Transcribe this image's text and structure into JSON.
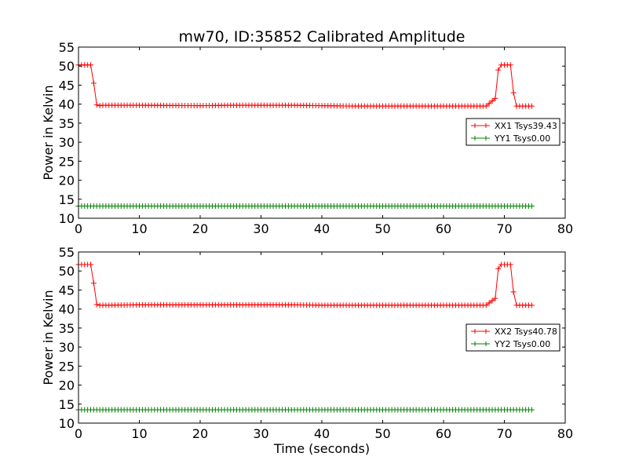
{
  "figure_title": "mw70, ID:35852 Calibrated Amplitude",
  "chart_data": [
    {
      "type": "line",
      "title": "mw70, ID:35852 Calibrated Amplitude",
      "xlabel": "",
      "ylabel": "Power in Kelvin",
      "xlim": [
        0,
        80
      ],
      "ylim": [
        10,
        55
      ],
      "xticks": [
        "0",
        "10",
        "20",
        "30",
        "40",
        "50",
        "60",
        "70",
        "80"
      ],
      "yticks": [
        "10",
        "15",
        "20",
        "25",
        "30",
        "35",
        "40",
        "45",
        "50",
        "55"
      ],
      "grid": false,
      "legend_position": "right",
      "marker": "+",
      "series": [
        {
          "name": "XX1 Tsys39.43",
          "color": "#ff0000",
          "x": [
            0,
            0.5,
            1,
            1.5,
            2,
            2.5,
            3,
            3.5,
            4,
            5,
            10,
            20,
            25,
            30,
            35,
            40,
            45,
            50,
            55,
            60,
            65,
            67,
            68.5,
            69,
            69.5,
            70,
            70.5,
            71,
            71.5,
            72,
            73,
            74,
            74.5
          ],
          "y": [
            50.3,
            50.3,
            50.3,
            50.3,
            50.3,
            45.5,
            39.8,
            39.6,
            39.7,
            39.7,
            39.7,
            39.6,
            39.7,
            39.7,
            39.7,
            39.6,
            39.5,
            39.5,
            39.5,
            39.5,
            39.5,
            39.5,
            41.5,
            49.0,
            50.3,
            50.3,
            50.3,
            50.3,
            43.0,
            39.5,
            39.5,
            39.5,
            39.5
          ]
        },
        {
          "name": "YY1 Tsys0.00",
          "color": "#008000",
          "x": [
            0,
            74.5
          ],
          "y": [
            13.2,
            13.2
          ]
        }
      ]
    },
    {
      "type": "line",
      "title": "",
      "xlabel": "Time (seconds)",
      "ylabel": "Power in Kelvin",
      "xlim": [
        0,
        80
      ],
      "ylim": [
        10,
        55
      ],
      "xticks": [
        "0",
        "10",
        "20",
        "30",
        "40",
        "50",
        "60",
        "70",
        "80"
      ],
      "yticks": [
        "10",
        "15",
        "20",
        "25",
        "30",
        "35",
        "40",
        "45",
        "50",
        "55"
      ],
      "grid": false,
      "legend_position": "right",
      "marker": "+",
      "series": [
        {
          "name": "XX2 Tsys40.78",
          "color": "#ff0000",
          "x": [
            0,
            0.5,
            1,
            1.5,
            2,
            2.5,
            3,
            3.5,
            4,
            5,
            10,
            20,
            25,
            30,
            35,
            40,
            45,
            50,
            55,
            60,
            65,
            67,
            68.5,
            69,
            69.5,
            70,
            70.5,
            71,
            71.5,
            72,
            73,
            74,
            74.5
          ],
          "y": [
            51.7,
            51.7,
            51.7,
            51.7,
            51.7,
            46.8,
            41.2,
            41.0,
            41.0,
            41.0,
            41.1,
            41.1,
            41.1,
            41.1,
            41.1,
            41.0,
            41.0,
            41.0,
            41.0,
            41.0,
            41.0,
            41.0,
            42.8,
            50.6,
            51.7,
            51.7,
            51.7,
            51.7,
            44.5,
            41.0,
            41.0,
            41.0,
            41.0
          ]
        },
        {
          "name": "YY2 Tsys0.00",
          "color": "#008000",
          "x": [
            0,
            74.5
          ],
          "y": [
            13.5,
            13.5
          ]
        }
      ]
    }
  ]
}
